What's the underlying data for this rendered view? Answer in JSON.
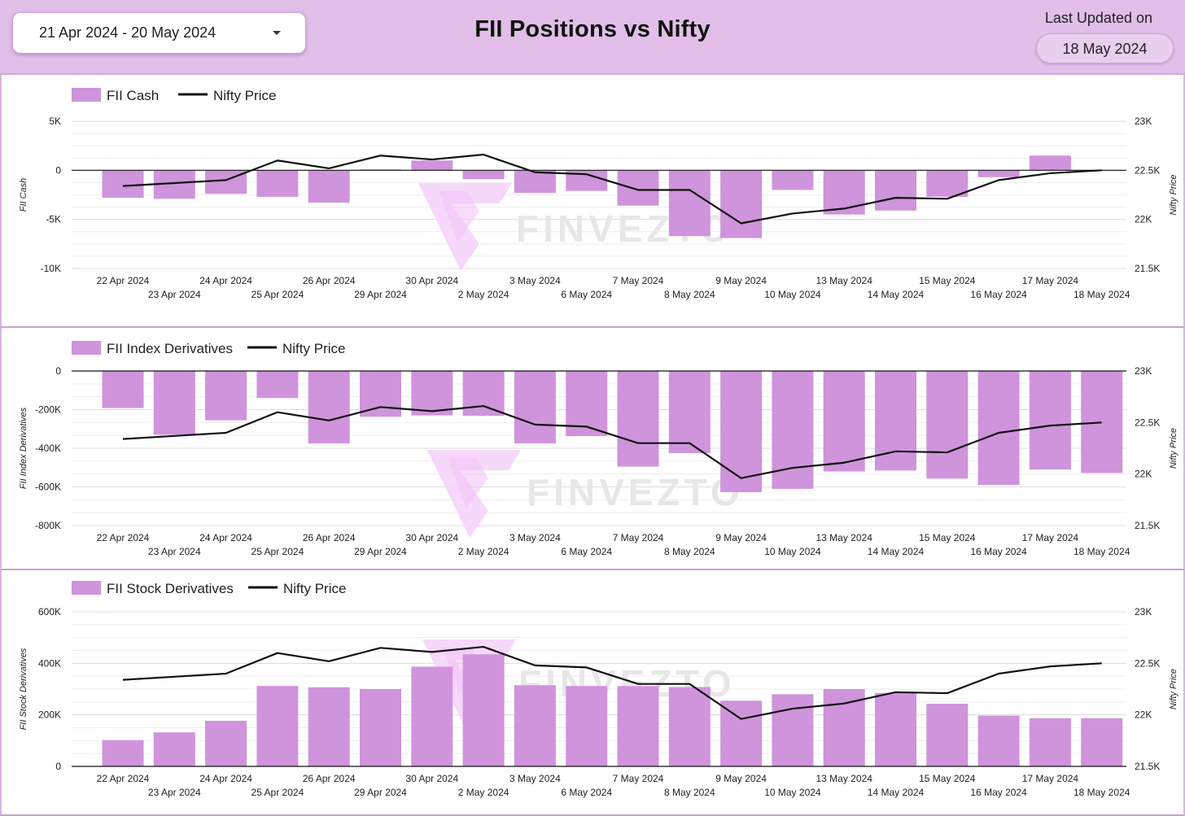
{
  "header": {
    "date_range": "21 Apr 2024 - 20 May 2024",
    "title": "FII Positions vs Nifty",
    "last_updated_label": "Last Updated on",
    "last_updated_value": "18 May 2024"
  },
  "watermark": "FINVEZTO",
  "colors": {
    "header_bg": "#e1bfe8",
    "bar": "#cf94db",
    "line": "#111111"
  },
  "chart_data": [
    {
      "type": "bar",
      "combo": "bar-line-dual-axis",
      "categories": [
        "22 Apr 2024",
        "23 Apr 2024",
        "24 Apr 2024",
        "25 Apr 2024",
        "26 Apr 2024",
        "29 Apr 2024",
        "30 Apr 2024",
        "2 May 2024",
        "3 May 2024",
        "6 May 2024",
        "7 May 2024",
        "8 May 2024",
        "9 May 2024",
        "10 May 2024",
        "13 May 2024",
        "14 May 2024",
        "15 May 2024",
        "16 May 2024",
        "17 May 2024",
        "18 May 2024"
      ],
      "series": [
        {
          "name": "FII Cash",
          "type": "bar",
          "axis": "left",
          "values": [
            -2800,
            -2900,
            -2400,
            -2700,
            -3300,
            100,
            1000,
            -900,
            -2300,
            -2100,
            -3600,
            -6700,
            -6900,
            -2000,
            -4500,
            -4100,
            -2700,
            -700,
            1500,
            0
          ]
        },
        {
          "name": "Nifty Price",
          "type": "line",
          "axis": "right",
          "values": [
            22340,
            22370,
            22400,
            22600,
            22520,
            22650,
            22610,
            22660,
            22480,
            22460,
            22300,
            22300,
            21960,
            22060,
            22110,
            22220,
            22210,
            22400,
            22470,
            22500
          ]
        }
      ],
      "ylabel": "FII Cash",
      "ylabel_right": "Nifty Price",
      "ylim": [
        -10000,
        5000
      ],
      "yticks": [
        "5K",
        "0",
        "-5K",
        "-10K"
      ],
      "ylim_right": [
        21500,
        23000
      ],
      "yticks_right": [
        "23K",
        "22.5K",
        "22K",
        "21.5K"
      ],
      "legend": "top-left",
      "grid": true
    },
    {
      "type": "bar",
      "combo": "bar-line-dual-axis",
      "categories": [
        "22 Apr 2024",
        "23 Apr 2024",
        "24 Apr 2024",
        "25 Apr 2024",
        "26 Apr 2024",
        "29 Apr 2024",
        "30 Apr 2024",
        "2 May 2024",
        "3 May 2024",
        "6 May 2024",
        "7 May 2024",
        "8 May 2024",
        "9 May 2024",
        "10 May 2024",
        "13 May 2024",
        "14 May 2024",
        "15 May 2024",
        "16 May 2024",
        "17 May 2024",
        "18 May 2024"
      ],
      "series": [
        {
          "name": "FII Index Derivatives",
          "type": "bar",
          "axis": "left",
          "values": [
            -192000,
            -330000,
            -255000,
            -140000,
            -375000,
            -237000,
            -230000,
            -232000,
            -375000,
            -337000,
            -495000,
            -425000,
            -627000,
            -610000,
            -520000,
            -515000,
            -557000,
            -590000,
            -510000,
            -528000
          ]
        },
        {
          "name": "Nifty Price",
          "type": "line",
          "axis": "right",
          "values": [
            22340,
            22370,
            22400,
            22600,
            22520,
            22650,
            22610,
            22660,
            22480,
            22460,
            22300,
            22300,
            21960,
            22060,
            22110,
            22220,
            22210,
            22400,
            22470,
            22500
          ]
        }
      ],
      "ylabel": "FII Index Derivatives",
      "ylabel_right": "Nifty Price",
      "ylim": [
        -800000,
        0
      ],
      "yticks": [
        "0",
        "-200K",
        "-400K",
        "-600K",
        "-800K"
      ],
      "ylim_right": [
        21500,
        23000
      ],
      "yticks_right": [
        "23K",
        "22.5K",
        "22K",
        "21.5K"
      ],
      "legend": "top-left",
      "grid": true
    },
    {
      "type": "bar",
      "combo": "bar-line-dual-axis",
      "categories": [
        "22 Apr 2024",
        "23 Apr 2024",
        "24 Apr 2024",
        "25 Apr 2024",
        "26 Apr 2024",
        "29 Apr 2024",
        "30 Apr 2024",
        "2 May 2024",
        "3 May 2024",
        "6 May 2024",
        "7 May 2024",
        "8 May 2024",
        "9 May 2024",
        "10 May 2024",
        "13 May 2024",
        "14 May 2024",
        "15 May 2024",
        "16 May 2024",
        "17 May 2024",
        "18 May 2024"
      ],
      "series": [
        {
          "name": "FII Stock Derivatives",
          "type": "bar",
          "axis": "left",
          "values": [
            102000,
            132000,
            177000,
            312000,
            307000,
            300000,
            387000,
            435000,
            315000,
            312000,
            312000,
            308000,
            255000,
            280000,
            300000,
            285000,
            243000,
            197000,
            187000,
            187000
          ]
        },
        {
          "name": "Nifty Price",
          "type": "line",
          "axis": "right",
          "values": [
            22340,
            22370,
            22400,
            22600,
            22520,
            22650,
            22610,
            22660,
            22480,
            22460,
            22300,
            22300,
            21960,
            22060,
            22110,
            22220,
            22210,
            22400,
            22470,
            22500
          ]
        }
      ],
      "ylabel": "FII Stock Derivatives",
      "ylabel_right": "Nifty Price",
      "ylim": [
        0,
        600000
      ],
      "yticks": [
        "600K",
        "400K",
        "200K",
        "0"
      ],
      "ylim_right": [
        21500,
        23000
      ],
      "yticks_right": [
        "23K",
        "22.5K",
        "22K",
        "21.5K"
      ],
      "legend": "top-left",
      "grid": true
    }
  ]
}
